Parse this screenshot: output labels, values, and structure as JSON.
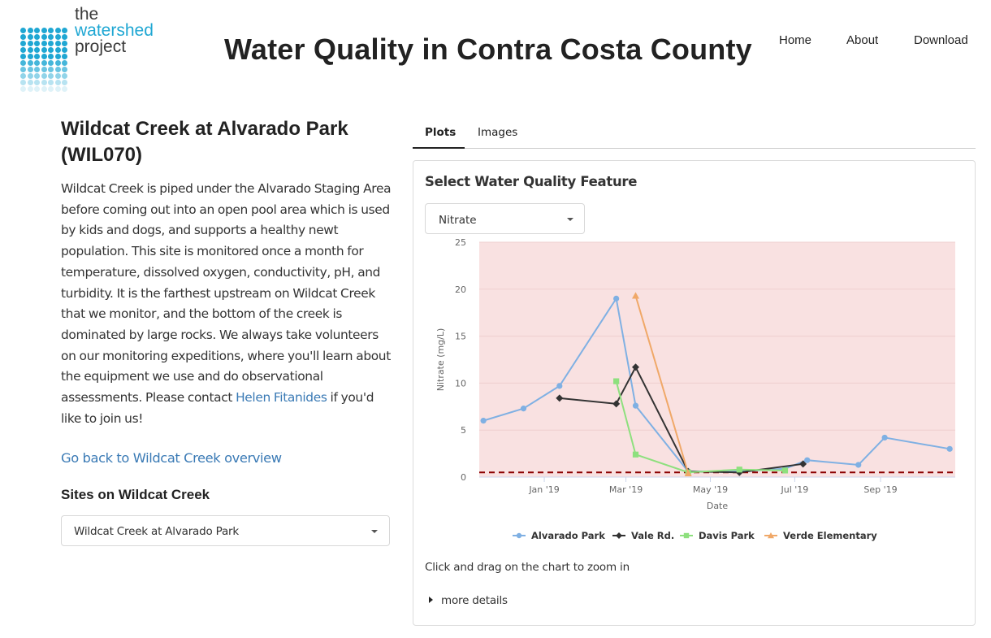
{
  "logo": {
    "line1": "the",
    "line2": "watershed",
    "line3": "project"
  },
  "header": {
    "title": "Water Quality in Contra Costa County"
  },
  "nav": {
    "home": "Home",
    "about": "About",
    "download": "Download"
  },
  "site": {
    "heading": "Wildcat Creek at Alvarado Park (WIL070)",
    "description_before_link": "Wildcat Creek is piped under the Alvarado Staging Area before coming out into an open pool area which is used by kids and dogs, and supports a healthy newt population. This site is monitored once a month for temperature, dissolved oxygen, conductivity, pH, and turbidity. It is the farthest upstream on Wildcat Creek that we monitor, and the bottom of the creek is dominated by large rocks. We always take volunteers on our monitoring expeditions, where you'll learn about the equipment we use and do observational assessments. Please contact ",
    "contact_name": "Helen Fitanides",
    "description_after_link": " if you'd like to join us!",
    "back_link": "Go back to Wildcat Creek overview",
    "sites_heading": "Sites on Wildcat Creek",
    "sites_selected": "Wildcat Creek at Alvarado Park"
  },
  "tabs": {
    "plots": "Plots",
    "images": "Images"
  },
  "panel": {
    "title": "Select Water Quality Feature",
    "feature_selected": "Nitrate",
    "hint": "Click and drag on the chart to zoom in",
    "details": "more details"
  },
  "chart_data": {
    "type": "line",
    "xlabel": "Date",
    "ylabel": "Nitrate (mg/L)",
    "ylim": [
      0,
      25
    ],
    "yticks": [
      0,
      5,
      10,
      15,
      20,
      25
    ],
    "xlim": [
      "2018-11-15",
      "2019-10-25"
    ],
    "xticks": [
      {
        "date": "2019-01-01",
        "label": "Jan '19"
      },
      {
        "date": "2019-03-01",
        "label": "Mar '19"
      },
      {
        "date": "2019-05-01",
        "label": "May '19"
      },
      {
        "date": "2019-07-01",
        "label": "Jul '19"
      },
      {
        "date": "2019-09-01",
        "label": "Sep '19"
      }
    ],
    "background_color": "#f9e1e1",
    "threshold": {
      "value": 0.5,
      "color": "#8b0000"
    },
    "legend_position": "bottom",
    "series": [
      {
        "name": "Alvarado Park",
        "color": "#7fb0e3",
        "marker": "circle",
        "points": [
          [
            "2018-11-18",
            6.0
          ],
          [
            "2018-12-17",
            7.3
          ],
          [
            "2019-01-12",
            9.7
          ],
          [
            "2019-02-22",
            19.0
          ],
          [
            "2019-03-08",
            7.6
          ],
          [
            "2019-04-15",
            0.6
          ],
          [
            "2019-05-22",
            0.6
          ],
          [
            "2019-06-24",
            0.9
          ],
          [
            "2019-07-10",
            1.8
          ],
          [
            "2019-08-16",
            1.3
          ],
          [
            "2019-09-04",
            4.2
          ],
          [
            "2019-10-21",
            3.0
          ]
        ]
      },
      {
        "name": "Vale Rd.",
        "color": "#333333",
        "marker": "diamond",
        "points": [
          [
            "2019-01-12",
            8.4
          ],
          [
            "2019-02-22",
            7.8
          ],
          [
            "2019-03-08",
            11.7
          ],
          [
            "2019-04-15",
            0.6
          ],
          [
            "2019-05-22",
            0.5
          ],
          [
            "2019-07-07",
            1.4
          ]
        ]
      },
      {
        "name": "Davis Park",
        "color": "#8ee07e",
        "marker": "square",
        "points": [
          [
            "2019-02-22",
            10.2
          ],
          [
            "2019-03-08",
            2.4
          ],
          [
            "2019-04-15",
            0.5
          ],
          [
            "2019-05-22",
            0.8
          ],
          [
            "2019-06-24",
            0.7
          ]
        ]
      },
      {
        "name": "Verde Elementary",
        "color": "#f0a868",
        "marker": "triangle",
        "points": [
          [
            "2019-03-08",
            19.3
          ],
          [
            "2019-04-15",
            0.4
          ]
        ]
      }
    ]
  }
}
